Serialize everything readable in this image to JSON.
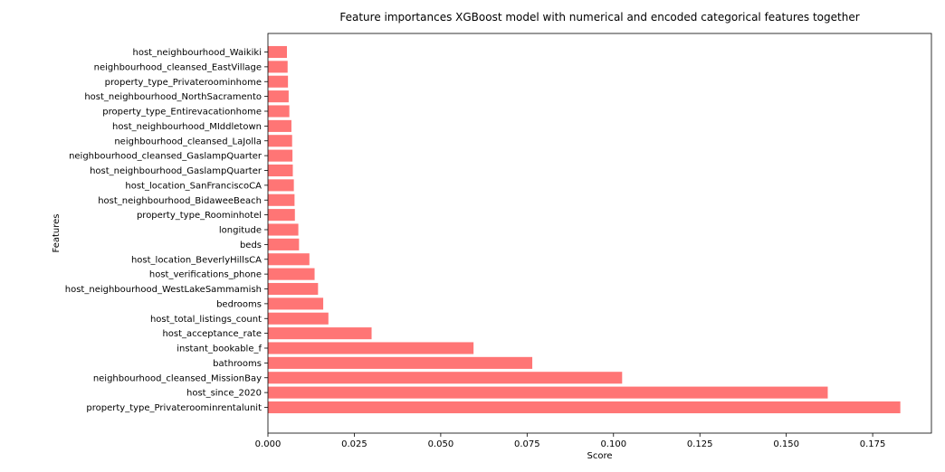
{
  "chart_data": {
    "type": "bar",
    "orientation": "horizontal",
    "title": "Feature importances XGBoost model with numerical and encoded categorical features together",
    "xlabel": "Score",
    "ylabel": "Features",
    "xlim": [
      0,
      0.192
    ],
    "x_ticks": [
      "0.000",
      "0.025",
      "0.050",
      "0.075",
      "0.100",
      "0.125",
      "0.150",
      "0.175"
    ],
    "x_tick_values": [
      0,
      0.025,
      0.05,
      0.075,
      0.1,
      0.125,
      0.15,
      0.175
    ],
    "bar_color": "#ff7575",
    "grid": false,
    "categories": [
      "property_type_Privateroominrentalunit",
      "host_since_2020",
      "neighbourhood_cleansed_MissionBay",
      "bathrooms",
      "instant_bookable_f",
      "host_acceptance_rate",
      "host_total_listings_count",
      "bedrooms",
      "host_neighbourhood_WestLakeSammamish",
      "host_verifications_phone",
      "host_location_BeverlyHillsCA",
      "beds",
      "longitude",
      "property_type_Roominhotel",
      "host_neighbourhood_BidaweeBeach",
      "host_location_SanFranciscoCA",
      "host_neighbourhood_GaslampQuarter",
      "neighbourhood_cleansed_GaslampQuarter",
      "neighbourhood_cleansed_LaJolla",
      "host_neighbourhood_MIddletown",
      "property_type_Entirevacationhome",
      "host_neighbourhood_NorthSacramento",
      "property_type_Privateroominhome",
      "neighbourhood_cleansed_EastVillage",
      "host_neighbourhood_Waikiki"
    ],
    "values": [
      0.183,
      0.162,
      0.1025,
      0.0765,
      0.0595,
      0.03,
      0.0175,
      0.016,
      0.0145,
      0.0135,
      0.012,
      0.009,
      0.0088,
      0.0078,
      0.0077,
      0.0075,
      0.0072,
      0.0071,
      0.007,
      0.0068,
      0.0062,
      0.006,
      0.0058,
      0.0057,
      0.0055
    ]
  }
}
